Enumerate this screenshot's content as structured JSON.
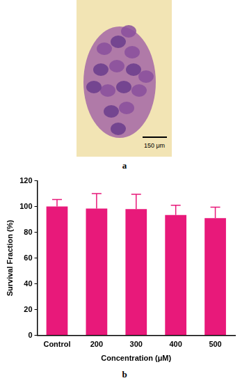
{
  "chart_data": {
    "type": "bar",
    "categories": [
      "Control",
      "200",
      "300",
      "400",
      "500"
    ],
    "values": [
      100,
      98.5,
      98,
      93.5,
      91
    ],
    "errors": [
      5.5,
      11.5,
      11.5,
      7.5,
      8.5
    ],
    "color": "#e8197a",
    "x_label": "Concentration (μM)",
    "y_label": "Survival Fraction (%)",
    "ylim": [
      0,
      120
    ],
    "yticks": [
      0,
      20,
      40,
      60,
      80,
      100,
      120
    ],
    "grid": false
  },
  "panel_labels": [
    "a",
    "b"
  ],
  "image": {
    "scale_bar": "150 μm"
  }
}
